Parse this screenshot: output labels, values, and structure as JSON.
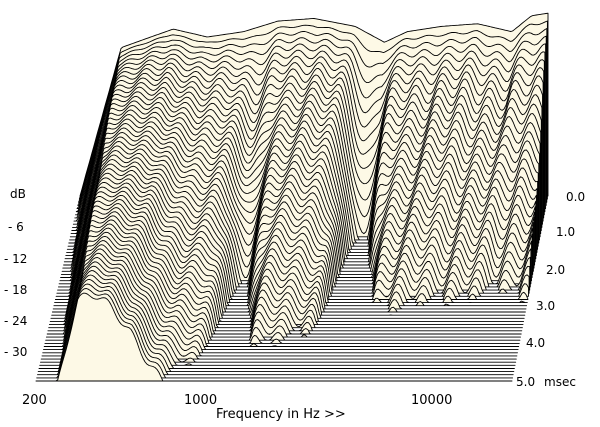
{
  "chart_data": {
    "type": "waterfall",
    "xlabel": "Frequency in Hz >>",
    "x_tick_labels": [
      "200",
      "1000",
      "10000"
    ],
    "x_scale": "log",
    "x_range": [
      200,
      20000
    ],
    "ylabel": "dB",
    "y_tick_labels": [
      "- 6",
      "- 12",
      "- 18",
      "- 24",
      "- 30"
    ],
    "y_range": [
      -36,
      0
    ],
    "z_label": "msec",
    "z_tick_labels": [
      "0.0",
      "1.0",
      "2.0",
      "3.0",
      "4.0",
      "5.0"
    ],
    "z_range": [
      0,
      5
    ],
    "slice_count": 60,
    "fill_color": "#fdf9e6",
    "line_color": "#000000",
    "initial_response_db": [
      {
        "hz": 200,
        "db": -36
      },
      {
        "hz": 300,
        "db": -8
      },
      {
        "hz": 500,
        "db": -4.5
      },
      {
        "hz": 700,
        "db": -6
      },
      {
        "hz": 1000,
        "db": -5
      },
      {
        "hz": 1400,
        "db": -3
      },
      {
        "hz": 2000,
        "db": -2.5
      },
      {
        "hz": 3000,
        "db": -4
      },
      {
        "hz": 4000,
        "db": -7
      },
      {
        "hz": 5000,
        "db": -5
      },
      {
        "hz": 7000,
        "db": -4
      },
      {
        "hz": 10000,
        "db": -3.5
      },
      {
        "hz": 14000,
        "db": -5
      },
      {
        "hz": 17000,
        "db": -2
      },
      {
        "hz": 20000,
        "db": -1.5
      }
    ]
  }
}
